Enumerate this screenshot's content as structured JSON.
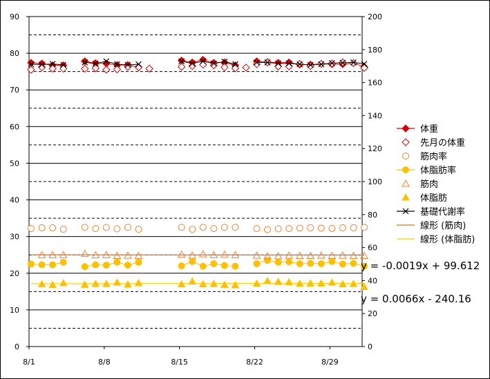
{
  "chart_data": {
    "type": "line",
    "x_ticks": [
      "8/1",
      "8/8",
      "8/15",
      "8/22",
      "8/29"
    ],
    "x_tick_days": [
      1,
      8,
      15,
      22,
      29
    ],
    "x_range_days": [
      1,
      32
    ],
    "y_left": {
      "range": [
        0,
        90
      ],
      "ticks": [
        0,
        10,
        20,
        30,
        40,
        50,
        60,
        70,
        80,
        90
      ]
    },
    "y_right": {
      "range": [
        0,
        200
      ],
      "ticks": [
        0,
        20,
        40,
        60,
        80,
        100,
        120,
        140,
        160,
        180,
        200
      ]
    },
    "grid": "horizontal (solid major, dashed minor)",
    "legend_position": "right",
    "colors": {
      "red": "#dd0000",
      "orange": "#f08030",
      "gold": "#ffc000",
      "black": "#000000",
      "trend_orange": "#e07020",
      "trend_gold": "#ffd000"
    },
    "series": [
      {
        "name": "体重",
        "axis": "left",
        "marker": "diamond-filled",
        "color": "#dd0000",
        "line": true,
        "x": [
          1,
          2,
          3,
          4,
          6,
          7,
          8,
          9,
          10,
          11,
          15,
          16,
          17,
          18,
          19,
          20,
          22,
          23,
          24,
          25,
          26,
          27,
          28,
          29,
          30,
          31,
          32
        ],
        "values": [
          77.4,
          77.2,
          76.7,
          76.7,
          77.8,
          77.3,
          77.2,
          76.8,
          76.8,
          76.2,
          78.0,
          77.5,
          78.2,
          77.4,
          77.5,
          76.7,
          77.8,
          77.6,
          77.4,
          77.5,
          76.9,
          76.9,
          77.1,
          77.0,
          77.0,
          77.3,
          76.3
        ]
      },
      {
        "name": "先月の体重",
        "axis": "left",
        "marker": "diamond-open",
        "color": "#dd0000",
        "line": false,
        "x": [
          1,
          2,
          3,
          4,
          6,
          7,
          8,
          9,
          10,
          11,
          12,
          15,
          16,
          17,
          18,
          19,
          20,
          21,
          22,
          23,
          24,
          25,
          26,
          27,
          28,
          29,
          30,
          31,
          32
        ],
        "values": [
          75.5,
          76.2,
          75.8,
          75.8,
          75.8,
          75.9,
          75.5,
          75.6,
          76.3,
          76.2,
          75.8,
          76.3,
          76.5,
          76.9,
          76.7,
          76.2,
          75.9,
          76.1,
          77.0,
          77.5,
          76.4,
          76.4,
          77.1,
          76.5,
          77.1,
          77.2,
          77.5,
          77.3,
          76.0
        ]
      },
      {
        "name": "筋肉率",
        "axis": "left",
        "marker": "circle-open",
        "color": "#f08030",
        "line": false,
        "x": [
          1,
          2,
          3,
          4,
          6,
          7,
          8,
          9,
          10,
          11,
          15,
          16,
          17,
          18,
          19,
          20,
          22,
          23,
          24,
          25,
          26,
          27,
          28,
          29,
          30,
          31,
          32
        ],
        "values": [
          32.2,
          32.4,
          32.4,
          32.0,
          32.5,
          32.2,
          32.5,
          32.1,
          32.5,
          32.0,
          32.5,
          32.0,
          32.5,
          32.2,
          32.5,
          32.5,
          32.2,
          31.9,
          32.1,
          32.2,
          32.3,
          32.4,
          32.3,
          32.2,
          32.4,
          32.4,
          32.5
        ]
      },
      {
        "name": "体脂肪率",
        "axis": "left",
        "marker": "circle-filled",
        "color": "#ffc000",
        "line": true,
        "x": [
          1,
          2,
          3,
          4,
          6,
          7,
          8,
          9,
          10,
          11,
          15,
          16,
          17,
          18,
          19,
          20,
          22,
          23,
          24,
          25,
          26,
          27,
          28,
          29,
          30,
          31,
          32
        ],
        "values": [
          22.5,
          22.3,
          22.3,
          23.0,
          21.8,
          22.3,
          22.2,
          23.0,
          22.2,
          23.0,
          22.0,
          23.2,
          21.9,
          22.6,
          22.1,
          21.9,
          22.6,
          23.5,
          23.0,
          23.1,
          22.6,
          22.7,
          22.6,
          23.2,
          22.5,
          22.7,
          21.9
        ]
      },
      {
        "name": "筋肉",
        "axis": "right",
        "marker": "triangle-open",
        "color": "#f08030",
        "line": false,
        "x": [
          2,
          3,
          4,
          6,
          7,
          8,
          9,
          10,
          11,
          15,
          16,
          17,
          18,
          19,
          20,
          22,
          23,
          24,
          25,
          26,
          27,
          28,
          29,
          30,
          31,
          32
        ],
        "values": [
          55.5,
          55.5,
          55.5,
          56.2,
          55.4,
          55.5,
          55.0,
          55.2,
          55.0,
          55.8,
          55.2,
          56.0,
          55.5,
          55.7,
          55.5,
          55.2,
          54.8,
          54.8,
          55.2,
          55.0,
          55.0,
          55.2,
          55.0,
          55.2,
          55.0,
          55.0
        ]
      },
      {
        "name": "体脂肪",
        "axis": "right",
        "marker": "triangle-filled",
        "color": "#ffc000",
        "line": false,
        "x": [
          2,
          3,
          4,
          6,
          7,
          8,
          9,
          10,
          11,
          15,
          16,
          17,
          18,
          19,
          20,
          22,
          23,
          24,
          25,
          26,
          27,
          28,
          29,
          30,
          31,
          32
        ],
        "values": [
          37.8,
          37.4,
          38.5,
          37.5,
          38.0,
          38.0,
          38.8,
          37.6,
          38.5,
          37.8,
          39.5,
          37.8,
          38.0,
          37.5,
          37.2,
          38.2,
          39.8,
          39.3,
          39.0,
          38.2,
          38.3,
          38.3,
          38.8,
          37.8,
          38.0,
          36.2
        ]
      },
      {
        "name": "基礎代謝率",
        "axis": "left",
        "marker": "x",
        "color": "#000000",
        "line": true,
        "x": [
          1,
          2,
          3,
          4,
          6,
          7,
          8,
          9,
          10,
          11,
          15,
          16,
          17,
          18,
          19,
          20,
          22,
          23,
          24,
          25,
          26,
          27,
          28,
          29,
          30,
          31,
          32
        ],
        "values": [
          77.0,
          76.9,
          77.1,
          76.8,
          77.5,
          77.2,
          77.8,
          77.0,
          76.8,
          77.0,
          77.8,
          77.2,
          77.8,
          77.2,
          77.7,
          77.0,
          77.5,
          77.5,
          77.2,
          77.2,
          77.0,
          76.8,
          77.0,
          77.3,
          77.4,
          77.5,
          77.1
        ]
      }
    ],
    "trendlines": [
      {
        "name": "線形 (筋肉)",
        "axis": "right",
        "color": "#e07020",
        "equation": "y = -0.0019x + 99.612",
        "y_start": 55.6,
        "y_end": 55.4
      },
      {
        "name": "線形 (体脂肪)",
        "axis": "right",
        "color": "#ffd000",
        "equation": "y = 0.0066x - 240.16",
        "y_start": 38.1,
        "y_end": 38.3
      }
    ],
    "annotations": [
      "y = -0.0019x + 99.612",
      "y = 0.0066x - 240.16"
    ]
  }
}
